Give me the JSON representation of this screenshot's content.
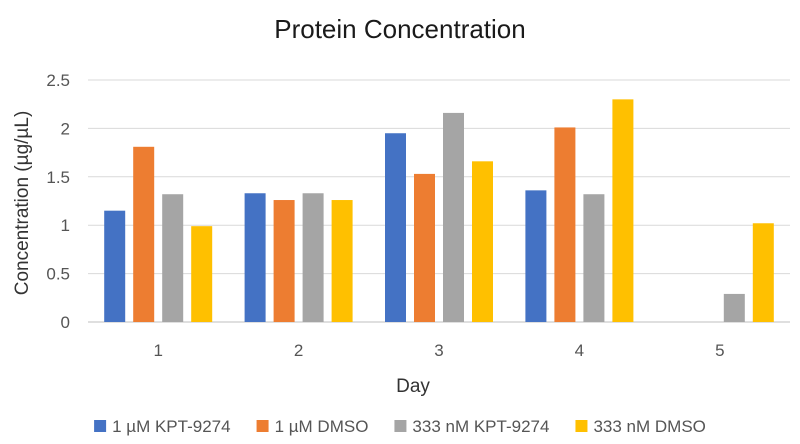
{
  "chart_data": {
    "type": "bar",
    "title": "Protein Concentration",
    "xlabel": "Day",
    "ylabel": "Concentration (µg/µL)",
    "categories": [
      "1",
      "2",
      "3",
      "4",
      "5"
    ],
    "ylim": [
      0,
      2.5
    ],
    "yticks": [
      "0",
      "0.5",
      "1",
      "1.5",
      "2",
      "2.5"
    ],
    "grid": true,
    "legend_position": "bottom",
    "series": [
      {
        "name": "1 µM KPT-9274",
        "color": "#4472c4",
        "values": [
          1.15,
          1.33,
          1.95,
          1.36,
          null
        ]
      },
      {
        "name": "1 µM DMSO",
        "color": "#ed7d31",
        "values": [
          1.81,
          1.26,
          1.53,
          2.01,
          null
        ]
      },
      {
        "name": "333 nM KPT-9274",
        "color": "#a5a5a5",
        "values": [
          1.32,
          1.33,
          2.16,
          1.32,
          0.29
        ]
      },
      {
        "name": "333 nM DMSO",
        "color": "#ffc000",
        "values": [
          0.99,
          1.26,
          1.66,
          2.3,
          1.02
        ]
      }
    ]
  }
}
